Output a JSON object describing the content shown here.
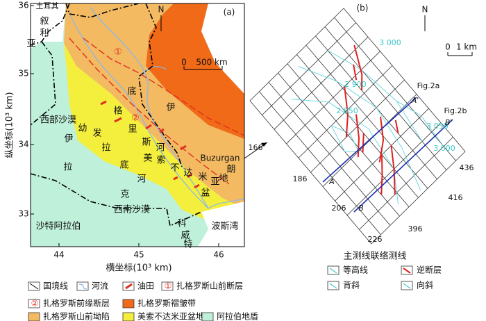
{
  "panel_a": {
    "label": "(a)",
    "north": "N",
    "scale": [
      "0",
      "500 km"
    ],
    "y_axis_title": "纵坐标(10³ km)",
    "x_axis_title": "横坐标(10³ km)",
    "yticks": [
      "36",
      "35",
      "34",
      "33"
    ],
    "xticks": [
      "44",
      "45",
      "46"
    ],
    "places": [
      "土耳其",
      "叙",
      "利",
      "亚",
      "底",
      "格",
      "里",
      "斯",
      "河",
      "幼",
      "发",
      "拉",
      "底",
      "河",
      "美",
      "索",
      "不",
      "达",
      "米",
      "亚",
      "盆",
      "地",
      "伊",
      "朗",
      "西部沙漠",
      "伊",
      "拉",
      "克",
      "西南沙漠",
      "沙特阿拉伯",
      "科",
      "威",
      "特",
      "波斯湾",
      "①",
      "②"
    ],
    "callout": "Buzurgan"
  },
  "panel_b": {
    "label": "(b)",
    "north": "N",
    "scale": [
      "0",
      "1 km"
    ],
    "contours": [
      "3 000",
      "2 900",
      "2 850",
      "3 050",
      "3 000"
    ],
    "sections": [
      "Fig.2a",
      "A'",
      "Fig.2b",
      "B'",
      "A",
      "B"
    ],
    "lines": [
      "166",
      "186",
      "206",
      "226",
      "396",
      "416",
      "436"
    ],
    "caption": "主测线联络测线"
  },
  "legend_a": [
    {
      "marker": "",
      "text": "国境线"
    },
    {
      "marker": "",
      "text": "河流"
    },
    {
      "marker": "",
      "text": "油田"
    },
    {
      "marker": "①",
      "text": "扎格罗斯山前断层"
    },
    {
      "marker": "②",
      "text": "扎格罗斯前缘断层"
    },
    {
      "marker": "",
      "text": "扎格罗斯褶皱带"
    },
    {
      "marker": "",
      "text": "扎格罗斯山前坳陷"
    },
    {
      "marker": "",
      "text": "美索不达米亚盆地"
    },
    {
      "marker": "",
      "text": "阿拉伯地盾"
    }
  ],
  "legend_b": [
    "等高线",
    "逆断层",
    "背斜",
    "向斜"
  ]
}
